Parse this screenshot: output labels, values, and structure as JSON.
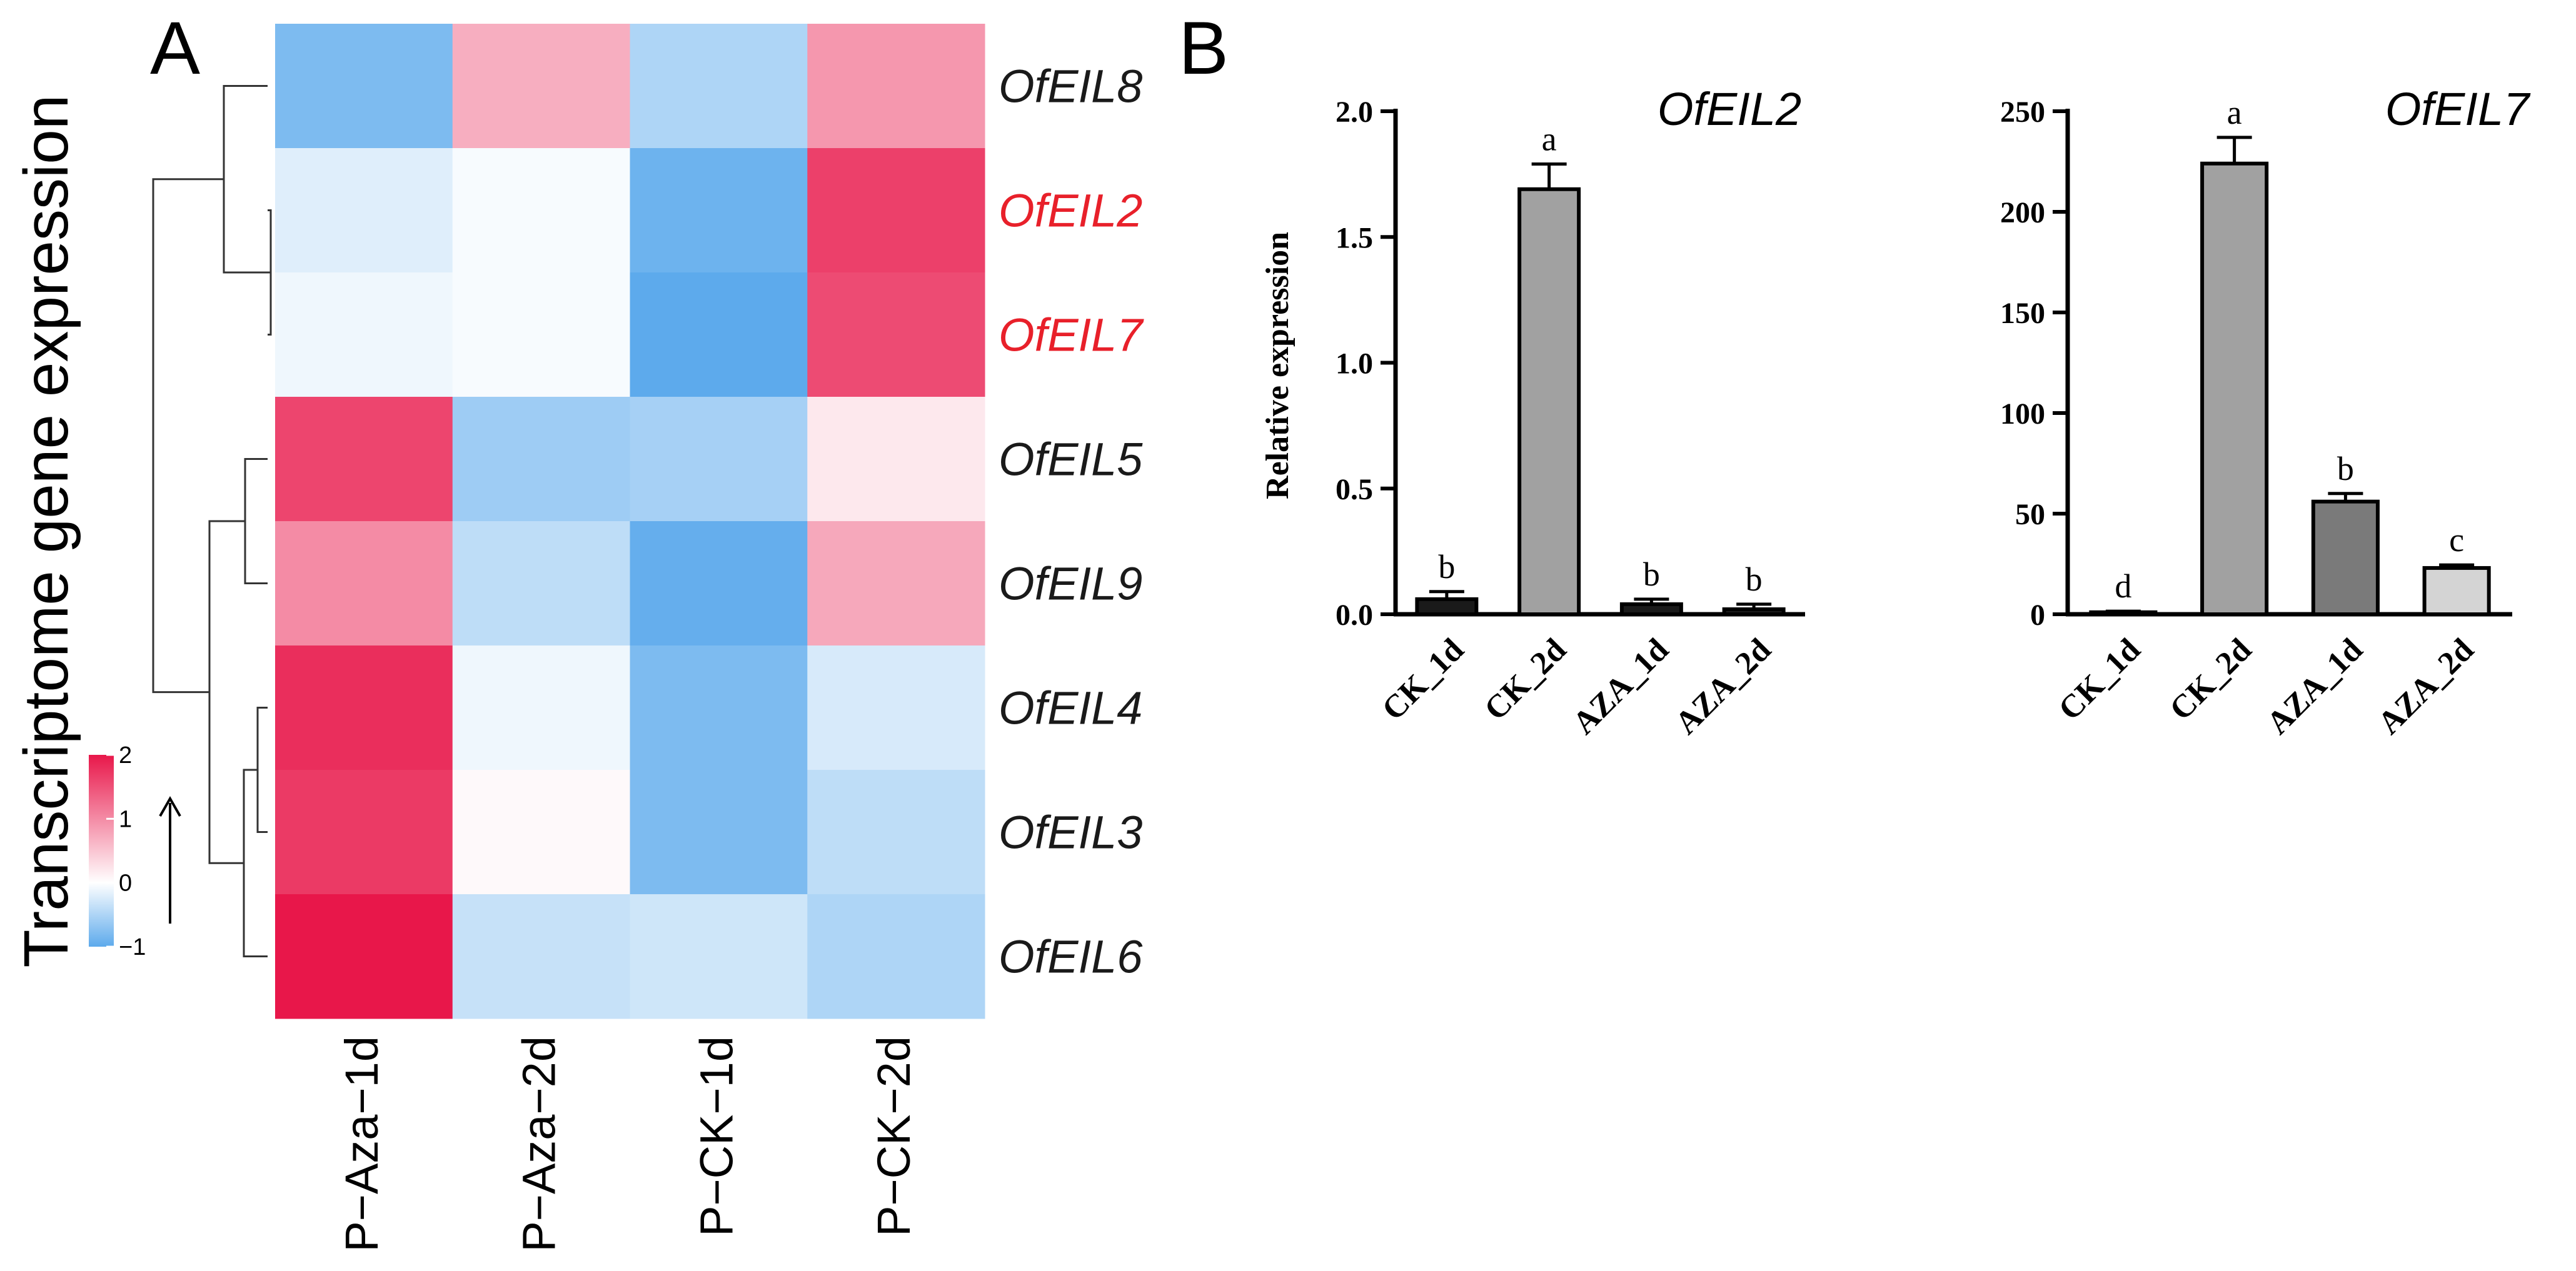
{
  "panel_a": {
    "label": "A",
    "ylabel": "Transcriptome gene expression",
    "legend": {
      "max": 2,
      "ticks": [
        {
          "value": 2,
          "label": "2"
        },
        {
          "value": 1,
          "label": "1"
        },
        {
          "value": 0,
          "label": "0"
        },
        {
          "value": -1,
          "label": "−1"
        }
      ],
      "colors": {
        "low": "#5DAAEC",
        "mid": "#FFFFFF",
        "high": "#E8174A"
      }
    },
    "highlight_color": "#E8202A",
    "default_label_color": "#1A1A1A"
  },
  "panel_b": {
    "label": "B",
    "ylabel": "Relative expression"
  },
  "chart_data": [
    {
      "type": "heatmap",
      "title": "",
      "ylabel": "Transcriptome gene expression",
      "columns": [
        "P−Aza−1d",
        "P−Aza−2d",
        "P−CK−1d",
        "P−CK−2d"
      ],
      "rows": [
        "OfEIL8",
        "OfEIL2",
        "OfEIL7",
        "OfEIL5",
        "OfEIL9",
        "OfEIL4",
        "OfEIL3",
        "OfEIL6"
      ],
      "highlighted_rows": [
        "OfEIL2",
        "OfEIL7"
      ],
      "values": [
        [
          -0.8,
          0.7,
          -0.5,
          0.9
        ],
        [
          -0.2,
          -0.05,
          -0.9,
          1.65
        ],
        [
          -0.1,
          -0.05,
          -1.0,
          1.55
        ],
        [
          1.6,
          -0.6,
          -0.55,
          0.2
        ],
        [
          1.0,
          -0.4,
          -0.95,
          0.75
        ],
        [
          1.8,
          -0.1,
          -0.8,
          -0.25
        ],
        [
          1.7,
          0.05,
          -0.8,
          -0.4
        ],
        [
          2.1,
          -0.35,
          -0.3,
          -0.5
        ]
      ],
      "color_range": [
        -1,
        2
      ]
    },
    {
      "type": "bar",
      "title": "OfEIL2",
      "ylabel": "Relative expression",
      "categories": [
        "CK_1d",
        "CK_2d",
        "AZA_1d",
        "AZA_2d"
      ],
      "values": [
        0.06,
        1.69,
        0.04,
        0.02
      ],
      "errors": [
        0.03,
        0.1,
        0.02,
        0.02
      ],
      "significance": [
        "b",
        "a",
        "b",
        "b"
      ],
      "colors": [
        "#1A1A1A",
        "#A1A1A1",
        "#1A1A1A",
        "#1A1A1A"
      ],
      "ylim": [
        0,
        2.0
      ],
      "yticks": [
        {
          "value": 0.0,
          "label": "0.0"
        },
        {
          "value": 0.5,
          "label": "0.5"
        },
        {
          "value": 1.0,
          "label": "1.0"
        },
        {
          "value": 1.5,
          "label": "1.5"
        },
        {
          "value": 2.0,
          "label": "2.0"
        }
      ]
    },
    {
      "type": "bar",
      "title": "OfEIL7",
      "ylabel": "",
      "categories": [
        "CK_1d",
        "CK_2d",
        "AZA_1d",
        "AZA_2d"
      ],
      "values": [
        1,
        224,
        56,
        23
      ],
      "errors": [
        0.5,
        13,
        4,
        1.5
      ],
      "significance": [
        "d",
        "a",
        "b",
        "c"
      ],
      "colors": [
        "#1A1A1A",
        "#A1A1A1",
        "#7A7A7A",
        "#D4D4D4"
      ],
      "ylim": [
        0,
        250
      ],
      "yticks": [
        {
          "value": 0,
          "label": "0"
        },
        {
          "value": 50,
          "label": "50"
        },
        {
          "value": 100,
          "label": "100"
        },
        {
          "value": 150,
          "label": "150"
        },
        {
          "value": 200,
          "label": "200"
        },
        {
          "value": 250,
          "label": "250"
        }
      ]
    }
  ]
}
